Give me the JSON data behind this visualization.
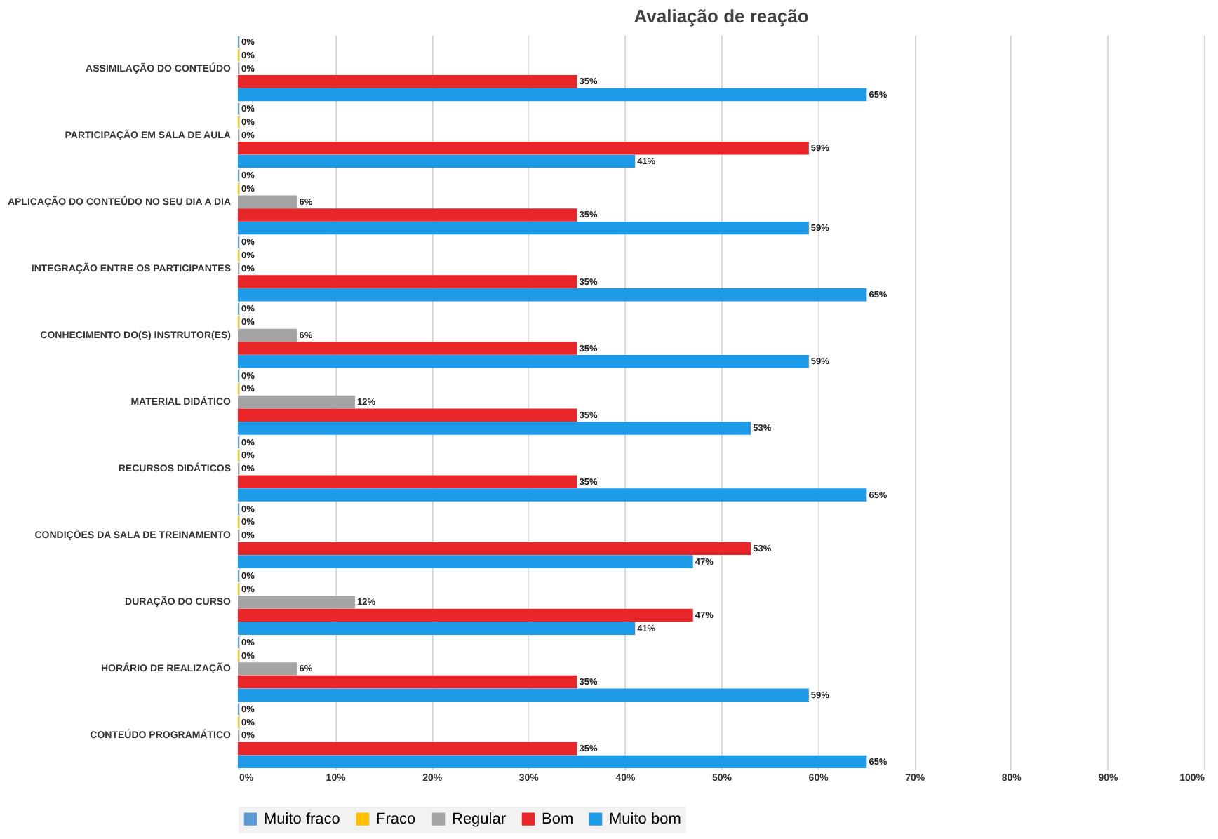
{
  "chart_data": {
    "type": "bar",
    "orientation": "horizontal",
    "title": "Avaliação de reação",
    "categories": [
      "ASSIMILAÇÃO DO CONTEÚDO",
      "PARTICIPAÇÃO EM SALA DE AULA",
      "APLICAÇÃO DO CONTEÚDO NO SEU DIA A DIA",
      "INTEGRAÇÃO ENTRE OS PARTICIPANTES",
      "CONHECIMENTO DO(S) INSTRUTOR(ES)",
      "MATERIAL DIDÁTICO",
      "RECURSOS DIDÁTICOS",
      "CONDIÇÕES DA SALA DE TREINAMENTO",
      "DURAÇÃO DO CURSO",
      "HORÁRIO DE REALIZAÇÃO",
      "CONTEÚDO PROGRAMÁTICO"
    ],
    "series": [
      {
        "name": "Muito fraco",
        "color": "#5b9bd5",
        "values": [
          0,
          0,
          0,
          0,
          0,
          0,
          0,
          0,
          0,
          0,
          0
        ],
        "value_labels": [
          "0%",
          "0%",
          "0%",
          "0%",
          "0%",
          "0%",
          "0%",
          "0%",
          "0%",
          "0%",
          "0%"
        ]
      },
      {
        "name": "Fraco",
        "color": "#ffc000",
        "values": [
          0,
          0,
          0,
          0,
          0,
          0,
          0,
          0,
          0,
          0,
          0
        ],
        "value_labels": [
          "0%",
          "0%",
          "0%",
          "0%",
          "0%",
          "0%",
          "0%",
          "0%",
          "0%",
          "0%",
          "0%"
        ]
      },
      {
        "name": "Regular",
        "color": "#a5a5a5",
        "values": [
          0,
          0,
          6,
          0,
          6,
          12,
          0,
          0,
          12,
          6,
          0
        ],
        "value_labels": [
          "0%",
          "0%",
          "6%",
          "0%",
          "6%",
          "12%",
          "0%",
          "0%",
          "12%",
          "6%",
          "0%"
        ]
      },
      {
        "name": "Bom",
        "color": "#e8262a",
        "values": [
          35,
          59,
          35,
          35,
          35,
          35,
          35,
          53,
          47,
          35,
          35
        ],
        "value_labels": [
          "35%",
          "59%",
          "35%",
          "35%",
          "35%",
          "35%",
          "35%",
          "53%",
          "47%",
          "35%",
          "35%"
        ]
      },
      {
        "name": "Muito bom",
        "color": "#1e9be8",
        "values": [
          65,
          41,
          59,
          65,
          59,
          53,
          65,
          47,
          41,
          59,
          65
        ],
        "value_labels": [
          "65%",
          "41%",
          "59%",
          "65%",
          "59%",
          "53%",
          "65%",
          "47%",
          "41%",
          "59%",
          "65%"
        ]
      }
    ],
    "xlim": [
      0,
      100
    ],
    "xticks": [
      {
        "value": 0,
        "label": "0%"
      },
      {
        "value": 10,
        "label": "10%"
      },
      {
        "value": 20,
        "label": "20%"
      },
      {
        "value": 30,
        "label": "30%"
      },
      {
        "value": 40,
        "label": "40%"
      },
      {
        "value": 50,
        "label": "50%"
      },
      {
        "value": 60,
        "label": "60%"
      },
      {
        "value": 70,
        "label": "70%"
      },
      {
        "value": 80,
        "label": "80%"
      },
      {
        "value": 90,
        "label": "90%"
      },
      {
        "value": 100,
        "label": "100%"
      }
    ],
    "grid": "x",
    "legend": "bottom"
  }
}
